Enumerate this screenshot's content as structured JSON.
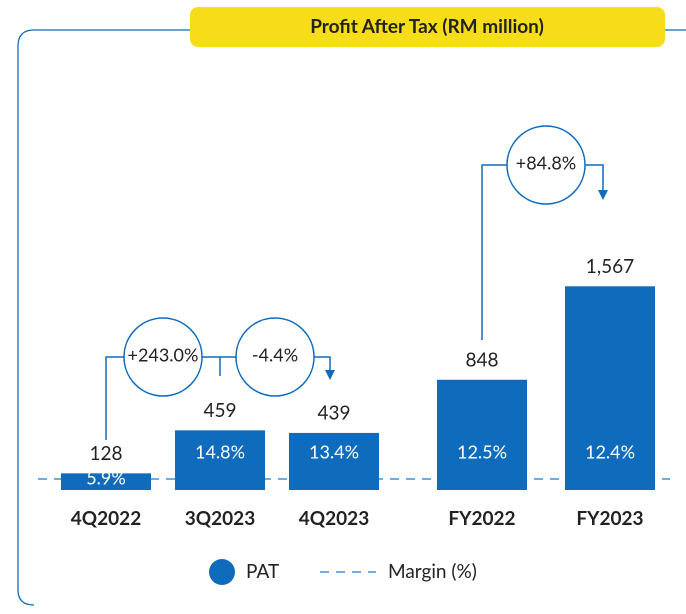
{
  "chart_data": {
    "type": "bar",
    "title": "Profit After Tax (RM million)",
    "categories": [
      "4Q2022",
      "3Q2023",
      "4Q2023",
      "FY2022",
      "FY2023"
    ],
    "series": [
      {
        "name": "PAT",
        "color": "#0f6cbd",
        "values": [
          128,
          459,
          439,
          848,
          1567
        ],
        "value_labels": [
          "128",
          "459",
          "439",
          "848",
          "1,567"
        ]
      },
      {
        "name": "Margin (%)",
        "color": "#6aaee6",
        "values": [
          5.9,
          14.8,
          13.4,
          12.5,
          12.4
        ],
        "value_labels": [
          "5.9%",
          "14.8%",
          "13.4%",
          "12.5%",
          "12.4%"
        ]
      }
    ],
    "annotations": [
      "+243.0%",
      "-4.4%",
      "+84.8%"
    ],
    "ylim": [
      0,
      1800
    ]
  }
}
